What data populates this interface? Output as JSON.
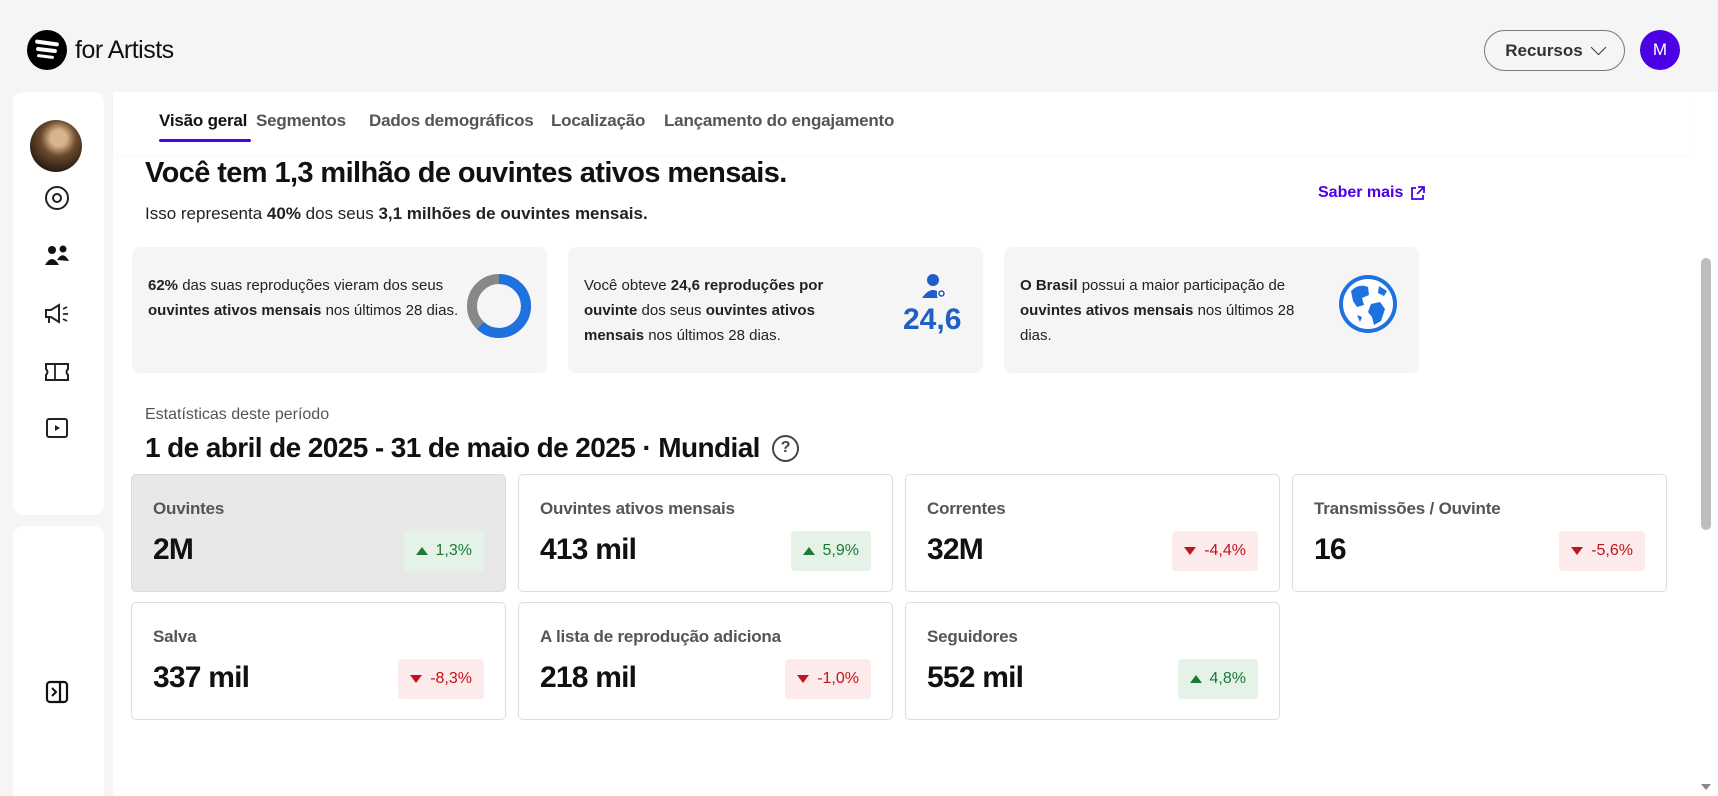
{
  "header": {
    "brand_text": "for Artists",
    "resources_label": "Recursos",
    "user_initial": "M"
  },
  "tabs": [
    {
      "label": "Visão geral",
      "active": true
    },
    {
      "label": "Segmentos"
    },
    {
      "label": "Dados demográficos"
    },
    {
      "label": "Localização"
    },
    {
      "label": "Lançamento do engajamento"
    }
  ],
  "sidebar": {
    "icons": [
      "artist-avatar",
      "disc-icon",
      "audience-icon",
      "campaign-icon",
      "ticket-icon",
      "video-icon"
    ],
    "collapse_icon": "collapse-sidebar-icon"
  },
  "summary": {
    "headline": "Você tem 1,3 milhão de ouvintes ativos mensais.",
    "sub_pre": "Isso representa ",
    "sub_pct": "40%",
    "sub_mid": " dos seus ",
    "sub_total": "3,1 milhões de ouvintes mensais.",
    "learn_more": "Saber mais"
  },
  "cards": [
    {
      "bold1": "62%",
      "text1": " das suas reproduções vieram dos seus ",
      "bold2": "ouvintes ativos mensais",
      "text2": " nos últimos 28 dias.",
      "donut_fraction": 0.62
    },
    {
      "text0": "Você obteve ",
      "bold1": "24,6 reproduções por ouvinte",
      "text1": " dos seus ",
      "bold2": "ouvintes ativos mensais",
      "text2": " nos últimos 28 dias.",
      "big_value": "24,6"
    },
    {
      "bold1": "O Brasil",
      "text1": " possui a maior participação de ",
      "bold2": "ouvintes ativos mensais",
      "text2": " nos últimos 28 dias."
    }
  ],
  "period": {
    "label": "Estatísticas deste período",
    "range": "1 de abril de 2025 - 31 de maio de 2025 · Mundial",
    "help": "?"
  },
  "stats": [
    {
      "label": "Ouvintes",
      "value": "2M",
      "change": "1,3%",
      "direction": "up",
      "selected": true
    },
    {
      "label": "Ouvintes ativos mensais",
      "value": "413 mil",
      "change": "5,9%",
      "direction": "up"
    },
    {
      "label": "Correntes",
      "value": "32M",
      "change": "-4,4%",
      "direction": "down"
    },
    {
      "label": "Transmissões / Ouvinte",
      "value": "16",
      "change": "-5,6%",
      "direction": "down"
    },
    {
      "label": "Salva",
      "value": "337 mil",
      "change": "-8,3%",
      "direction": "down"
    },
    {
      "label": "A lista de reprodução adiciona",
      "value": "218 mil",
      "change": "-1,0%",
      "direction": "down"
    },
    {
      "label": "Seguidores",
      "value": "552 mil",
      "change": "4,8%",
      "direction": "up"
    }
  ],
  "colors": {
    "accent": "#4b00e6",
    "positive": "#1f7a38",
    "negative": "#c0141f",
    "donut_fill": "#1e72e0",
    "donut_track": "#888888"
  }
}
